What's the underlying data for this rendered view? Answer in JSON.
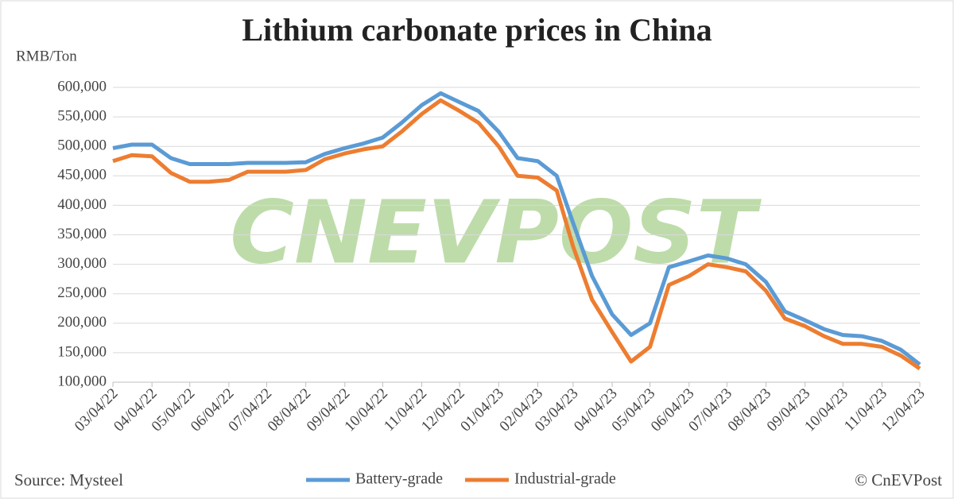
{
  "chart_data": {
    "type": "line",
    "title": "Lithium carbonate prices in China",
    "y_label": "RMB/Ton",
    "source": "Source: Mysteel",
    "credit": "© CnEVPost",
    "watermark": "CNEVPOST",
    "x": [
      "03/04/22",
      "03/19/22",
      "04/04/22",
      "04/19/22",
      "05/04/22",
      "05/19/22",
      "06/04/22",
      "06/19/22",
      "07/04/22",
      "07/19/22",
      "08/04/22",
      "08/19/22",
      "09/04/22",
      "09/19/22",
      "10/04/22",
      "10/19/22",
      "11/04/22",
      "11/19/22",
      "12/04/22",
      "12/19/22",
      "01/04/23",
      "01/19/23",
      "02/04/23",
      "02/19/23",
      "03/04/23",
      "03/19/23",
      "04/04/23",
      "04/19/23",
      "05/04/23",
      "05/19/23",
      "06/04/23",
      "06/19/23",
      "07/04/23",
      "07/19/23",
      "08/04/23",
      "08/19/23",
      "09/04/23",
      "09/19/23",
      "10/04/23",
      "10/19/23",
      "11/04/23",
      "11/19/23",
      "12/04/23"
    ],
    "series": [
      {
        "name": "Battery-grade",
        "color": "#5b9bd5",
        "values": [
          497000,
          503000,
          503000,
          480000,
          470000,
          470000,
          470000,
          472000,
          472000,
          472000,
          473000,
          487000,
          497000,
          505000,
          515000,
          540000,
          570000,
          590000,
          575000,
          560000,
          525000,
          480000,
          475000,
          450000,
          370000,
          280000,
          215000,
          180000,
          200000,
          295000,
          305000,
          315000,
          310000,
          300000,
          270000,
          220000,
          205000,
          190000,
          180000,
          178000,
          170000,
          155000,
          130000
        ]
      },
      {
        "name": "Industrial-grade",
        "color": "#ed7d31",
        "values": [
          475000,
          485000,
          483000,
          455000,
          440000,
          440000,
          443000,
          457000,
          457000,
          457000,
          460000,
          478000,
          488000,
          495000,
          500000,
          525000,
          555000,
          578000,
          560000,
          540000,
          500000,
          450000,
          447000,
          425000,
          330000,
          240000,
          185000,
          135000,
          160000,
          265000,
          280000,
          300000,
          295000,
          288000,
          255000,
          208000,
          195000,
          178000,
          165000,
          165000,
          160000,
          145000,
          123000
        ]
      }
    ],
    "xticks": [
      "03/04/22",
      "04/04/22",
      "05/04/22",
      "06/04/22",
      "07/04/22",
      "08/04/22",
      "09/04/22",
      "10/04/22",
      "11/04/22",
      "12/04/22",
      "01/04/23",
      "02/04/23",
      "03/04/23",
      "04/04/23",
      "05/04/23",
      "06/04/23",
      "07/04/23",
      "08/04/23",
      "09/04/23",
      "10/04/23",
      "11/04/23",
      "12/04/23"
    ],
    "ylim": [
      100000,
      600000
    ],
    "yticks": [
      {
        "value": 100000,
        "label": "100,000"
      },
      {
        "value": 150000,
        "label": "150,000"
      },
      {
        "value": 200000,
        "label": "200,000"
      },
      {
        "value": 250000,
        "label": "250,000"
      },
      {
        "value": 300000,
        "label": "300,000"
      },
      {
        "value": 350000,
        "label": "350,000"
      },
      {
        "value": 400000,
        "label": "400,000"
      },
      {
        "value": 450000,
        "label": "450,000"
      },
      {
        "value": 500000,
        "label": "500,000"
      },
      {
        "value": 550000,
        "label": "550,000"
      },
      {
        "value": 600000,
        "label": "600,000"
      }
    ],
    "grid": true
  }
}
